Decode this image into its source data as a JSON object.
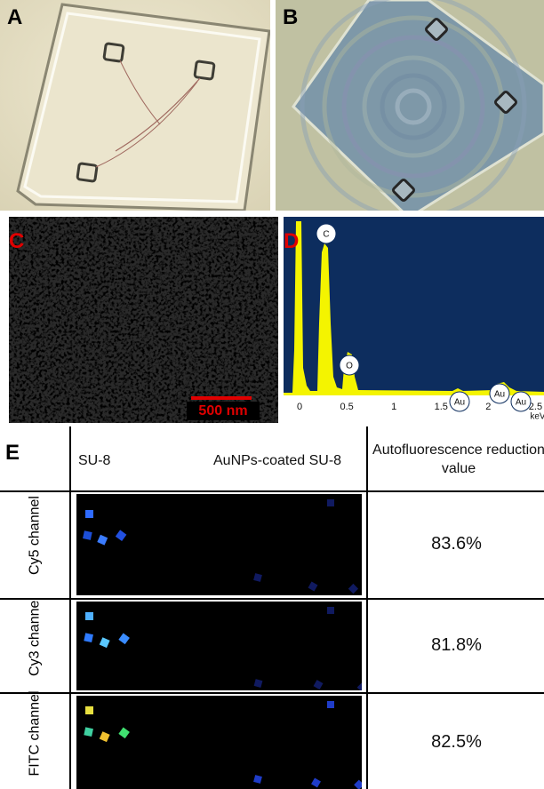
{
  "panels": {
    "a": {
      "label": "A"
    },
    "b": {
      "label": "B"
    },
    "c": {
      "label": "C",
      "scale_bar": "500 nm"
    },
    "d": {
      "label": "D",
      "peaks": [
        "C",
        "O",
        "Au",
        "Au",
        "Au"
      ],
      "xlim": [
        -0.17,
        2.59
      ],
      "xticks": [
        0,
        0.5,
        1,
        1.5,
        2,
        2.5
      ],
      "x_unit": "keV"
    }
  },
  "table": {
    "label": "E",
    "headers": [
      "SU-8",
      "AuNPs-coated SU-8",
      "Autofluorescence reduction value"
    ],
    "rows": [
      {
        "channel": "Cy5 channel",
        "value": "83.6%"
      },
      {
        "channel": "Cy3 channel",
        "value": "81.8%"
      },
      {
        "channel": "FITC channel",
        "value": "82.5%"
      }
    ]
  }
}
